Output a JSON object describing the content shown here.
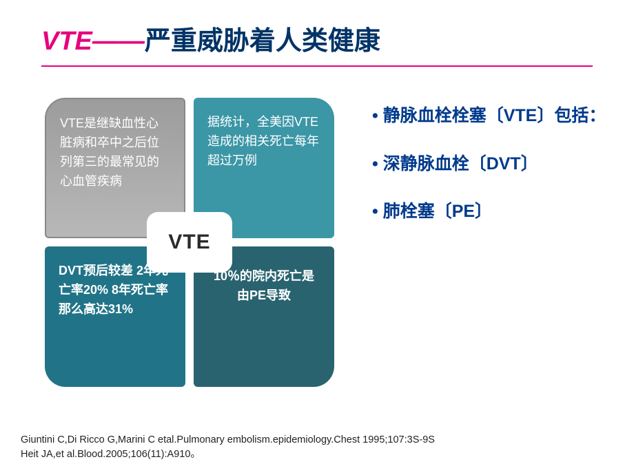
{
  "title": {
    "vte_part": "VTE——",
    "rest": "严重威胁着人类健康",
    "underline_color": "#e6007e",
    "vte_color": "#e6007e",
    "rest_color": "#003366",
    "fontsize": 38
  },
  "diagram": {
    "center_label": "VTE",
    "center_bg": "#ffffff",
    "center_text_color": "#2b2b2b",
    "center_fontsize": 30,
    "quad_fontsize": 18,
    "quad_text_color": "#ffffff",
    "quads": {
      "q1": {
        "text": "VTE是继缺血性心脏病和卒中之后位列第三的最常见的心血管疾病",
        "bg": "#a8a8a8",
        "corner": "top-left"
      },
      "q2": {
        "text": "据统计，全美因VTE造成的相关死亡每年超过万例",
        "bg": "#3b96a6",
        "corner": "top-right"
      },
      "q3": {
        "text": "DVT预后较差 2年死亡率20% 8年死亡率那么高达31%",
        "bg": "#217488",
        "corner": "bottom-left"
      },
      "q4": {
        "text": "10％的院内死亡是由PE导致",
        "bg": "#2a6370",
        "corner": "bottom-right"
      }
    }
  },
  "bullets": {
    "color": "#003a8c",
    "fontsize": 25,
    "items": [
      "静脉血栓栓塞〔VTE〕包括：",
      "深静脉血栓〔DVT〕",
      "肺栓塞〔PE〕"
    ]
  },
  "citation": {
    "line1": "Giuntini C,Di Ricco G,Marini C etal.Pulmonary embolism.epidemiology.Chest 1995;107:3S-9S",
    "line2": "Heit JA,et al.Blood.2005;106(11):A910。",
    "fontsize": 14.5,
    "color": "#222222"
  }
}
